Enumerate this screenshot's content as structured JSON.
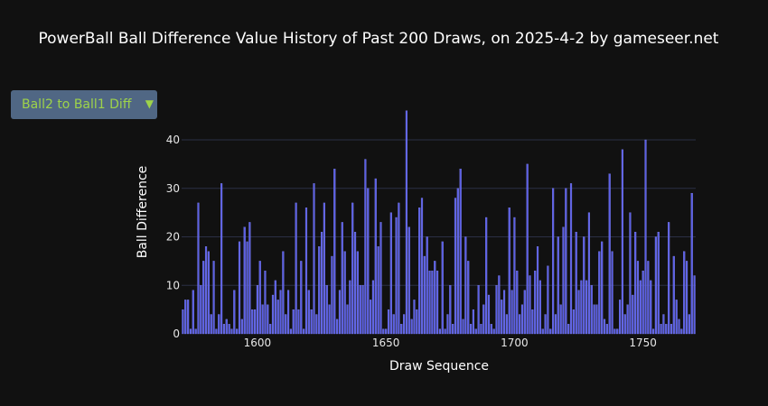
{
  "title": "PowerBall Ball Difference Value History of Past 200 Draws, on 2025-4-2 by gameseer.net",
  "dropdown": {
    "selected": "Ball2 to Ball1 Diff",
    "arrow": "▼"
  },
  "colors": {
    "bar": "#5b5fe6",
    "bar_stroke": "#8a8dff",
    "grid": "#2a2f45",
    "background": "#111111"
  },
  "chart_data": {
    "type": "bar",
    "title": "PowerBall Ball Difference Value History of Past 200 Draws, on 2025-4-2 by gameseer.net",
    "xlabel": "Draw Sequence",
    "ylabel": "Ball Difference",
    "xlim": [
      1570.5,
      1770.5
    ],
    "ylim": [
      0,
      48
    ],
    "xticks": [
      1600,
      1650,
      1700,
      1750
    ],
    "yticks": [
      0,
      10,
      20,
      30,
      40
    ],
    "x_start": 1571,
    "values": [
      5,
      7,
      7,
      1,
      9,
      1,
      27,
      10,
      15,
      18,
      17,
      4,
      15,
      1,
      4,
      31,
      2,
      3,
      2,
      1,
      9,
      1,
      19,
      3,
      22,
      19,
      23,
      5,
      5,
      10,
      15,
      6,
      13,
      6,
      2,
      8,
      11,
      7,
      9,
      17,
      4,
      9,
      1,
      5,
      27,
      5,
      15,
      1,
      26,
      9,
      5,
      31,
      4,
      18,
      21,
      27,
      10,
      6,
      16,
      34,
      3,
      9,
      23,
      17,
      6,
      11,
      27,
      21,
      17,
      10,
      10,
      36,
      30,
      7,
      11,
      32,
      18,
      23,
      1,
      1,
      5,
      25,
      4,
      24,
      27,
      2,
      4,
      46,
      22,
      3,
      7,
      5,
      26,
      28,
      16,
      20,
      13,
      13,
      15,
      13,
      1,
      19,
      1,
      4,
      10,
      2,
      28,
      30,
      34,
      3,
      20,
      15,
      2,
      5,
      1,
      10,
      2,
      6,
      24,
      8,
      2,
      1,
      10,
      12,
      7,
      9,
      4,
      26,
      9,
      24,
      13,
      4,
      6,
      9,
      35,
      12,
      5,
      13,
      18,
      11,
      1,
      4,
      14,
      1,
      30,
      4,
      20,
      6,
      22,
      30,
      2,
      31,
      5,
      21,
      9,
      11,
      20,
      11,
      25,
      10,
      6,
      6,
      17,
      19,
      3,
      2,
      33,
      17,
      1,
      1,
      7,
      38,
      4,
      6,
      25,
      8,
      21,
      15,
      11,
      13,
      40,
      15,
      11,
      1,
      20,
      21,
      2,
      4,
      2,
      23,
      2,
      16,
      7,
      3,
      1,
      17,
      15,
      4,
      29,
      12
    ]
  }
}
